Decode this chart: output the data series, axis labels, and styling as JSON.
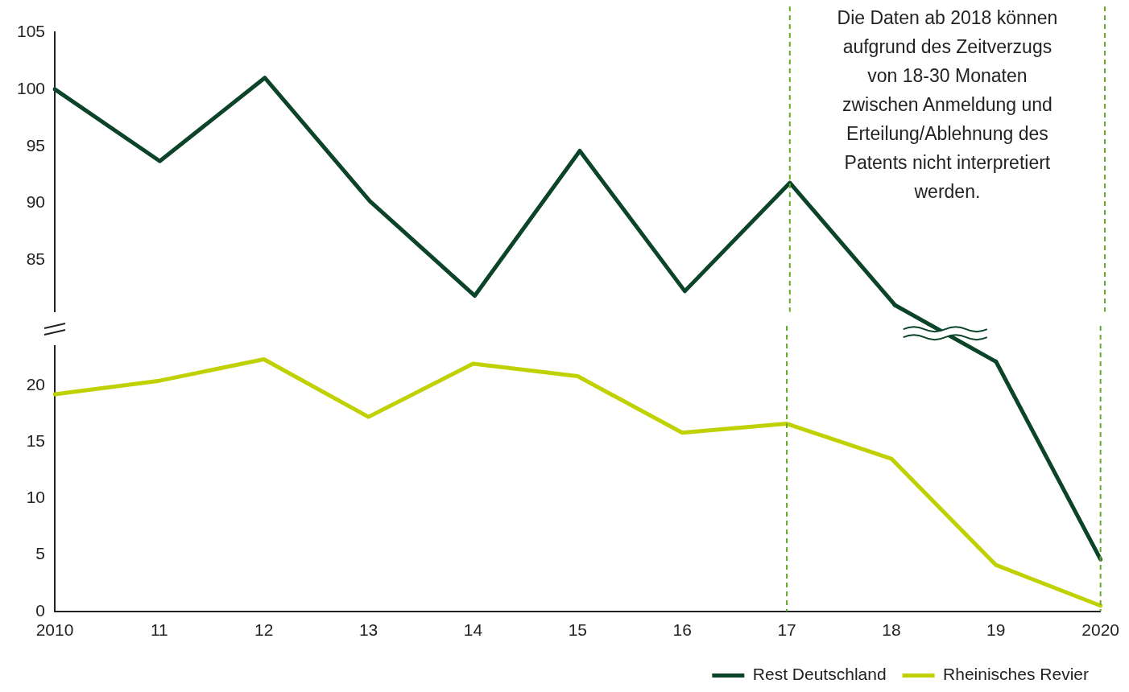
{
  "chart_data": [
    {
      "type": "line",
      "categories": [
        "2010",
        "11",
        "12",
        "13",
        "14",
        "15",
        "16",
        "17",
        "18",
        "19",
        "2020"
      ],
      "ylim": [
        80.5,
        105
      ],
      "yticks": [
        85,
        90,
        95,
        100,
        105
      ],
      "tick_labels": "y",
      "series": [
        {
          "color": "#0b4428",
          "values": [
            100,
            93.7,
            101,
            90.2,
            81.9,
            94.6,
            82.3,
            91.8,
            81.1,
            null,
            null
          ]
        }
      ],
      "ref_lines": [
        {
          "axis": "x",
          "value": "17",
          "color": "#6aaa2a",
          "line_style": "dashed"
        },
        {
          "axis": "x",
          "value": "2020",
          "color": "#6aaa2a",
          "line_style": "dashed"
        }
      ],
      "annotations": [
        "Die Daten ab 2018 können\naufgrund des Zeitverzugs\nvon 18-30 Monaten\nzwischen Anmeldung und\nErteilung/Ablehnung des\nPatents nicht interpretiert\nwerden."
      ],
      "grid": false,
      "marker": "none",
      "line_style": "solid"
    },
    {
      "type": "line",
      "categories": [
        "2010",
        "11",
        "12",
        "13",
        "14",
        "15",
        "16",
        "17",
        "18",
        "19",
        "2020"
      ],
      "ylim": [
        0,
        23.5
      ],
      "yticks": [
        0,
        5,
        10,
        15,
        20
      ],
      "series": [
        {
          "name": "Rest Deutschland",
          "color": "#0b4428",
          "values": [
            null,
            null,
            null,
            null,
            null,
            null,
            null,
            null,
            null,
            22.1,
            4.6
          ]
        },
        {
          "name": "Rheinisches Revier",
          "color": "#bfd100",
          "values": [
            19.2,
            20.4,
            22.3,
            17.2,
            21.9,
            20.8,
            15.8,
            16.6,
            13.5,
            4.1,
            0.5
          ]
        }
      ],
      "ref_lines": [
        {
          "axis": "x",
          "value": "17",
          "color": "#6aaa2a",
          "line_style": "dashed"
        },
        {
          "axis": "x",
          "value": "2020",
          "color": "#6aaa2a",
          "line_style": "dashed"
        }
      ],
      "grid": false,
      "legend": "bottom right",
      "marker": "none",
      "line_style": "solid"
    }
  ]
}
